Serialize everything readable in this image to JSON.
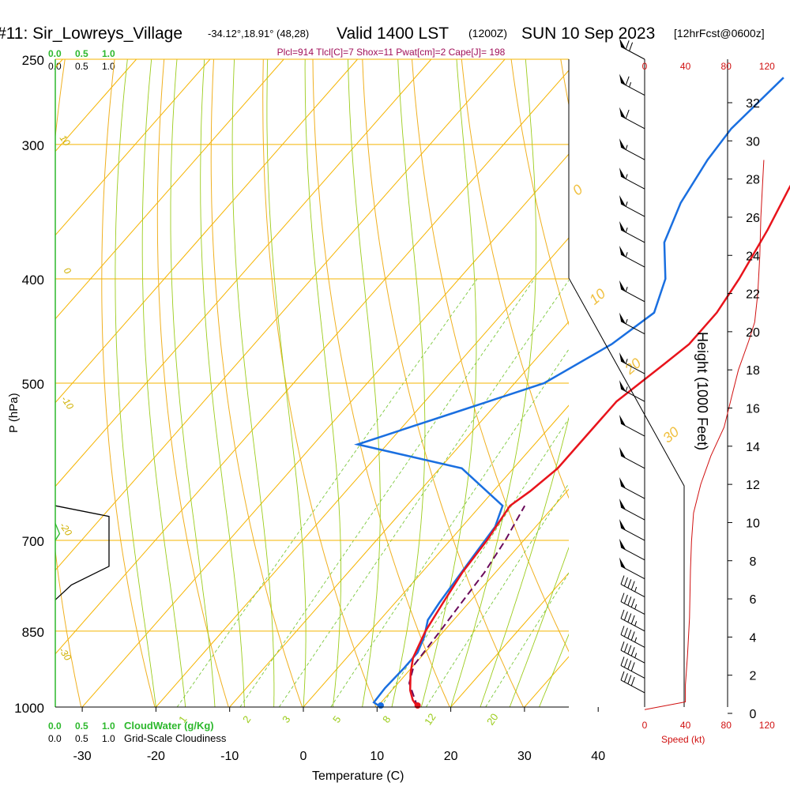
{
  "header": {
    "station": "#11: Sir_Lowreys_Village",
    "coords": "-34.12°,18.91° (48,28)",
    "valid": "Valid 1400 LST",
    "zulu": "(1200Z)",
    "date": "SUN 10 Sep 2023",
    "forecast": "[12hrFcst@0600z]"
  },
  "params_line": "Plcl=914 Tlcl[C]=7 Shox=11 Pwat[cm]=2 Cape[J]= 198",
  "cloud_scales": {
    "cloudwater_ticks": [
      "0.0",
      "0.5",
      "1.0"
    ],
    "cloudiness_ticks": [
      "0.0",
      "0.5",
      "1.0"
    ],
    "cloudwater_label": "CloudWater (g/Kg)",
    "cloudiness_label": "Grid-Scale Cloudiness"
  },
  "colors": {
    "temperature": "#e8141c",
    "dewpoint": "#1a6fe0",
    "parcel": "#6a0a5a",
    "isotherm": "#f5b400",
    "dry_adiabat": "#f0b020",
    "moist_adiabat": "#9ccc1c",
    "mixing_ratio": "#7cc83c",
    "cloudwater": "#2db82d",
    "speed": "#d01010",
    "params": "#a0105a"
  },
  "chart_data": {
    "type": "skew-t",
    "xlabel": "Temperature (C)",
    "ylabel": "P (hPa)",
    "right_ylabel": "Height (1000 Feet)",
    "speed_label": "Speed (kt)",
    "x_ticks": [
      "-30",
      "-20",
      "-10",
      "0",
      "10",
      "20",
      "30",
      "40"
    ],
    "x_tick_values": [
      -30,
      -20,
      -10,
      0,
      10,
      20,
      30,
      40
    ],
    "pressure_ticks": [
      "250",
      "300",
      "400",
      "500",
      "700",
      "850",
      "1000"
    ],
    "pressure_tick_values": [
      250,
      300,
      400,
      500,
      700,
      850,
      1000
    ],
    "height_ticks": [
      "0",
      "2",
      "4",
      "6",
      "8",
      "10",
      "12",
      "14",
      "16",
      "18",
      "20",
      "22",
      "24",
      "26",
      "28",
      "30",
      "32"
    ],
    "speed_ticks": [
      "0",
      "40",
      "80",
      "120"
    ],
    "mixing_ratio_labels": [
      "1",
      "2",
      "3",
      "5",
      "8",
      "12",
      "20"
    ],
    "moist_adiabat_labels": [
      "0",
      "10",
      "20",
      "30"
    ],
    "dry_adiabat_labels": [
      "10",
      "0",
      "-10",
      "-20",
      "-30"
    ],
    "temperature": [
      {
        "p": 1000,
        "t": 15.5
      },
      {
        "p": 985,
        "t": 14.0
      },
      {
        "p": 965,
        "t": 12.5
      },
      {
        "p": 930,
        "t": 10.5
      },
      {
        "p": 900,
        "t": 9.0
      },
      {
        "p": 850,
        "t": 7.5
      },
      {
        "p": 800,
        "t": 6.5
      },
      {
        "p": 750,
        "t": 5.5
      },
      {
        "p": 700,
        "t": 5.0
      },
      {
        "p": 650,
        "t": 4.0
      },
      {
        "p": 630,
        "t": 5.0
      },
      {
        "p": 600,
        "t": 6.0
      },
      {
        "p": 560,
        "t": 6.0
      },
      {
        "p": 520,
        "t": 6.0
      },
      {
        "p": 480,
        "t": 8.0
      },
      {
        "p": 460,
        "t": 9.0
      },
      {
        "p": 430,
        "t": 9.0
      },
      {
        "p": 400,
        "t": 8.0
      },
      {
        "p": 360,
        "t": 6.0
      },
      {
        "p": 330,
        "t": 4.0
      },
      {
        "p": 300,
        "t": 2.0
      },
      {
        "p": 280,
        "t": 1.0
      },
      {
        "p": 262,
        "t": 0.0
      }
    ],
    "dewpoint": [
      {
        "p": 1000,
        "t": 10.5
      },
      {
        "p": 990,
        "t": 9.0
      },
      {
        "p": 960,
        "t": 8.8
      },
      {
        "p": 920,
        "t": 9.0
      },
      {
        "p": 890,
        "t": 9.0
      },
      {
        "p": 860,
        "t": 8.0
      },
      {
        "p": 830,
        "t": 6.5
      },
      {
        "p": 800,
        "t": 6.0
      },
      {
        "p": 760,
        "t": 5.5
      },
      {
        "p": 720,
        "t": 5.0
      },
      {
        "p": 680,
        "t": 4.5
      },
      {
        "p": 650,
        "t": 3.0
      },
      {
        "p": 600,
        "t": -7.0
      },
      {
        "p": 570,
        "t": -24.0
      },
      {
        "p": 530,
        "t": -14.0
      },
      {
        "p": 500,
        "t": -6.0
      },
      {
        "p": 460,
        "t": -1.5
      },
      {
        "p": 430,
        "t": 0.5
      },
      {
        "p": 400,
        "t": -2.0
      },
      {
        "p": 370,
        "t": -6.5
      },
      {
        "p": 340,
        "t": -9.0
      },
      {
        "p": 310,
        "t": -10.5
      },
      {
        "p": 290,
        "t": -11.0
      },
      {
        "p": 260,
        "t": -10.0
      }
    ],
    "parcel": [
      {
        "p": 1000,
        "t": 15.5
      },
      {
        "p": 950,
        "t": 11.5
      },
      {
        "p": 914,
        "t": 10.0
      },
      {
        "p": 850,
        "t": 9.5
      },
      {
        "p": 800,
        "t": 9.0
      },
      {
        "p": 750,
        "t": 8.5
      },
      {
        "p": 700,
        "t": 7.5
      },
      {
        "p": 650,
        "t": 6.0
      }
    ],
    "surface_point_temp": 15.5,
    "surface_point_dew": 10.5,
    "wind_speed_profile": [
      {
        "z": 0.2,
        "kt": 0
      },
      {
        "z": 0.6,
        "kt": 40
      },
      {
        "z": 1.5,
        "kt": 40
      },
      {
        "z": 3.0,
        "kt": 42
      },
      {
        "z": 5.0,
        "kt": 44
      },
      {
        "z": 7.5,
        "kt": 45
      },
      {
        "z": 9.0,
        "kt": 46
      },
      {
        "z": 10.5,
        "kt": 48
      },
      {
        "z": 12.0,
        "kt": 55
      },
      {
        "z": 13.5,
        "kt": 65
      },
      {
        "z": 15.0,
        "kt": 78
      },
      {
        "z": 16.5,
        "kt": 85
      },
      {
        "z": 18.0,
        "kt": 92
      },
      {
        "z": 19.5,
        "kt": 102
      },
      {
        "z": 20.5,
        "kt": 108
      },
      {
        "z": 22.0,
        "kt": 111
      },
      {
        "z": 24.0,
        "kt": 113
      },
      {
        "z": 26.0,
        "kt": 114
      },
      {
        "z": 28.0,
        "kt": 116
      },
      {
        "z": 29.0,
        "kt": 117
      }
    ],
    "wind_barbs": [
      {
        "p": 250,
        "kt": 70
      },
      {
        "p": 270,
        "kt": 65
      },
      {
        "p": 290,
        "kt": 60
      },
      {
        "p": 310,
        "kt": 55
      },
      {
        "p": 330,
        "kt": 55
      },
      {
        "p": 350,
        "kt": 55
      },
      {
        "p": 370,
        "kt": 55
      },
      {
        "p": 390,
        "kt": 55
      },
      {
        "p": 420,
        "kt": 55
      },
      {
        "p": 450,
        "kt": 55
      },
      {
        "p": 490,
        "kt": 55
      },
      {
        "p": 520,
        "kt": 55
      },
      {
        "p": 560,
        "kt": 50
      },
      {
        "p": 600,
        "kt": 50
      },
      {
        "p": 640,
        "kt": 50
      },
      {
        "p": 670,
        "kt": 50
      },
      {
        "p": 700,
        "kt": 50
      },
      {
        "p": 730,
        "kt": 50
      },
      {
        "p": 760,
        "kt": 50
      },
      {
        "p": 790,
        "kt": 45
      },
      {
        "p": 820,
        "kt": 45
      },
      {
        "p": 850,
        "kt": 45
      },
      {
        "p": 880,
        "kt": 45
      },
      {
        "p": 910,
        "kt": 45
      },
      {
        "p": 940,
        "kt": 40
      },
      {
        "p": 970,
        "kt": 40
      }
    ],
    "cloudiness": [
      {
        "p": 650,
        "v": 0.0
      },
      {
        "p": 665,
        "v": 1.0
      },
      {
        "p": 740,
        "v": 1.0
      },
      {
        "p": 770,
        "v": 0.3
      },
      {
        "p": 795,
        "v": 0.0
      }
    ],
    "cloudwater": [
      {
        "p": 675,
        "v": 0.0
      },
      {
        "p": 690,
        "v": 0.08
      },
      {
        "p": 700,
        "v": 0.0
      }
    ]
  }
}
